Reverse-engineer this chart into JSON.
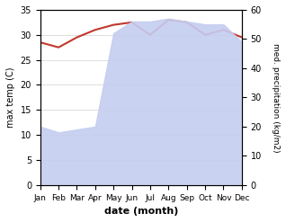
{
  "months": [
    "Jan",
    "Feb",
    "Mar",
    "Apr",
    "May",
    "Jun",
    "Jul",
    "Aug",
    "Sep",
    "Oct",
    "Nov",
    "Dec"
  ],
  "temperature": [
    28.5,
    27.5,
    29.5,
    31.0,
    32.0,
    32.5,
    30.0,
    33.0,
    32.5,
    30.0,
    31.0,
    29.5
  ],
  "precipitation": [
    20,
    18,
    19,
    20,
    52,
    56,
    56,
    57,
    56,
    55,
    55,
    49
  ],
  "temp_color": "#c0392b",
  "precip_fill_color": "#c5cdf0",
  "temp_ylim": [
    0,
    35
  ],
  "precip_ylim": [
    0,
    60
  ],
  "temp_yticks": [
    0,
    5,
    10,
    15,
    20,
    25,
    30,
    35
  ],
  "precip_yticks": [
    0,
    10,
    20,
    30,
    40,
    50,
    60
  ],
  "ylabel_left": "max temp (C)",
  "ylabel_right": "med. precipitation (kg/m2)",
  "xlabel": "date (month)",
  "bg_color": "#ffffff",
  "grid_color": "#d0d0d0"
}
